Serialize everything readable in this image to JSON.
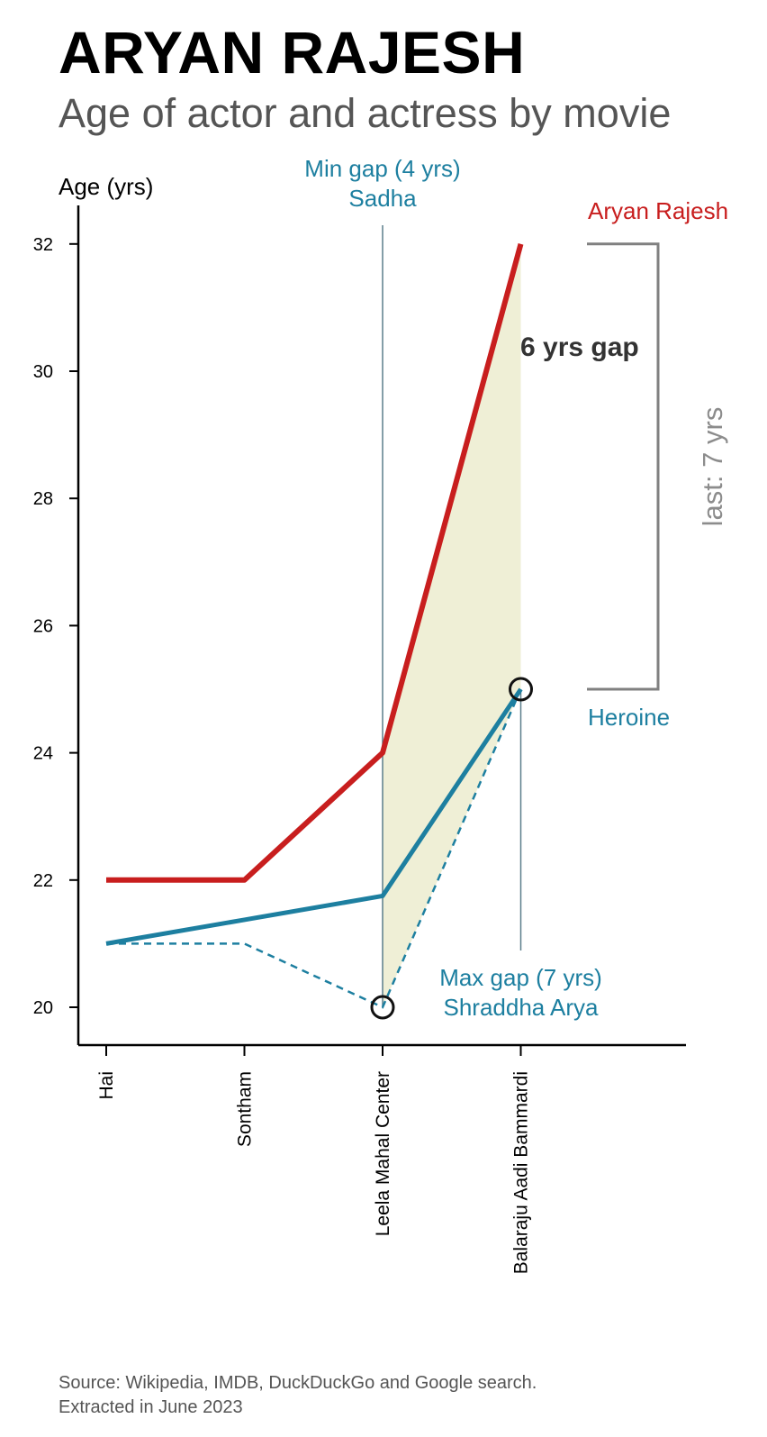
{
  "title": "ARYAN RAJESH",
  "subtitle": "Age of actor and actress by movie",
  "source_line1": "Source: Wikipedia, IMDB, DuckDuckGo and Google search.",
  "source_line2": "Extracted in June 2023",
  "colors": {
    "actor": "#c81e1e",
    "heroine": "#1d7fa0",
    "gap_fill": "#efefd6",
    "bracket": "#808080",
    "axis": "#000000"
  },
  "chart_data": {
    "type": "line",
    "ylabel": "Age (yrs)",
    "categories": [
      "Hai",
      "Sontham",
      "Leela Mahal Center",
      "Balaraju Aadi Bammardi"
    ],
    "ylim": [
      19.4,
      32.6
    ],
    "yticks": [
      20,
      22,
      24,
      26,
      28,
      30,
      32
    ],
    "series": [
      {
        "name": "Aryan Rajesh",
        "role": "actor",
        "values": [
          22,
          22,
          24,
          32
        ]
      },
      {
        "name": "Heroine",
        "role": "heroine_avg",
        "values": [
          21,
          21.375,
          21.75,
          25
        ]
      },
      {
        "role": "heroine_min",
        "style": "dashed",
        "values": [
          21,
          21,
          20,
          25
        ]
      }
    ],
    "gap_region": {
      "from_index": 2,
      "to_index": 3,
      "label": "6 yrs gap"
    },
    "annotations": {
      "min_gap": {
        "index": 2,
        "line1": "Min gap (4 yrs)",
        "line2": "Sadha"
      },
      "max_gap": {
        "index": 3,
        "line1": "Max gap (7 yrs)",
        "line2": "Shraddha Arya"
      },
      "bracket_label": "last: 7 yrs",
      "circles": [
        {
          "index": 2,
          "value": 20
        },
        {
          "index": 3,
          "value": 25
        }
      ]
    }
  }
}
